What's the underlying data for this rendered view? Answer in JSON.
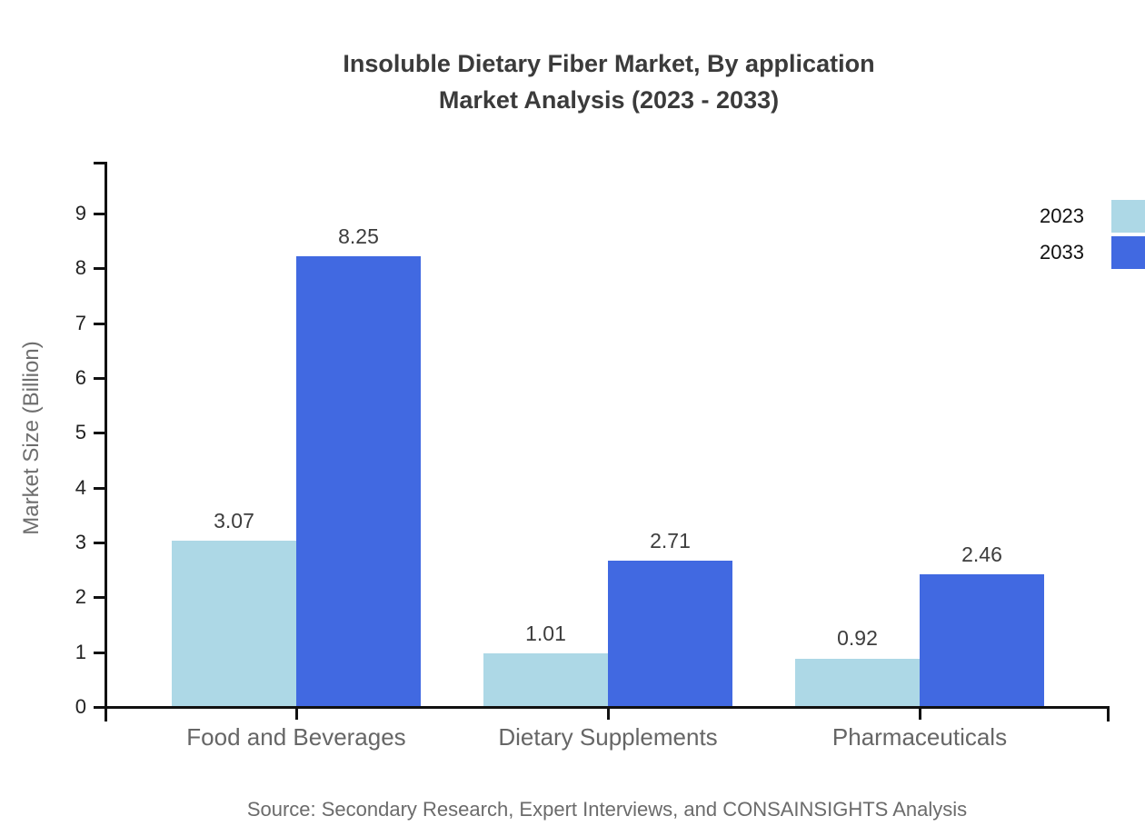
{
  "header": {
    "title_line1": "Insoluble Dietary Fiber Market, By application",
    "title_line2": "Market Analysis (2023 - 2033)"
  },
  "footer": {
    "source": "Source: Secondary Research, Expert Interviews, and CONSAINSIGHTS Analysis"
  },
  "chart_data": {
    "type": "bar",
    "title": "Insoluble Dietary Fiber Market, By application Market Analysis (2023 - 2033)",
    "categories": [
      "Food and Beverages",
      "Dietary Supplements",
      "Pharmaceuticals"
    ],
    "series": [
      {
        "name": "2023",
        "color": "#ADD8E6",
        "values": [
          3.07,
          1.01,
          0.92
        ]
      },
      {
        "name": "2033",
        "color": "#4169E1",
        "values": [
          8.25,
          2.71,
          2.46
        ]
      }
    ],
    "data_labels": [
      [
        "3.07",
        "1.01",
        "0.92"
      ],
      [
        "8.25",
        "2.71",
        "2.46"
      ]
    ],
    "xlabel": "",
    "ylabel": "Market Size (Billion)",
    "ylim": [
      0,
      9.98
    ],
    "yticks": [
      0,
      1,
      2,
      3,
      4,
      5,
      6,
      7,
      8,
      9
    ],
    "grid": false,
    "legend_position": "top-right",
    "axis_color": "#111111",
    "tick_label_color": "#222222",
    "category_label_color": "#666666",
    "value_label_color": "#3d3d3d"
  }
}
